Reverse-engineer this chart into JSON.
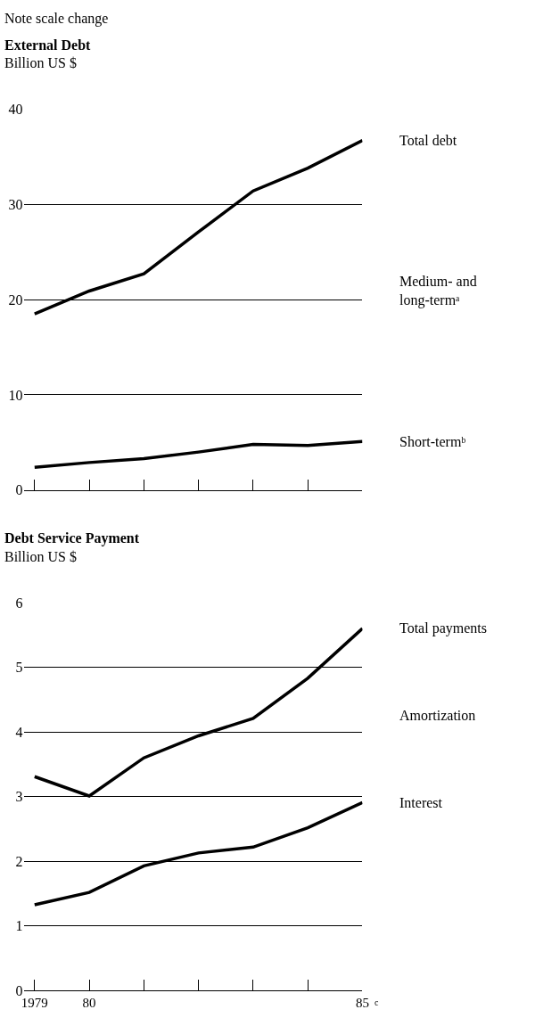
{
  "chart_data": [
    {
      "type": "line",
      "title": "External Debt",
      "subtitle": "Billion US $",
      "annotations": [
        "Medium- and long-termᵃ",
        "Note scale change"
      ],
      "x": [
        1979,
        1980,
        1981,
        1982,
        1983,
        1984,
        1985
      ],
      "series": [
        {
          "name": "Total debt",
          "color": "#000000",
          "values": [
            18.5,
            20.9,
            22.7,
            27.1,
            31.4,
            33.8,
            36.7
          ]
        },
        {
          "name": "Short-termᵇ",
          "color": "#000000",
          "values": [
            2.4,
            2.9,
            3.3,
            4.0,
            4.8,
            4.7,
            5.1
          ]
        }
      ],
      "xlim": [
        1978.8,
        1985
      ],
      "ylim": [
        0,
        40
      ],
      "yticks": [
        0,
        10,
        20,
        30,
        40
      ],
      "xticks": [
        {
          "value": 1979,
          "label": null
        },
        {
          "value": 1980,
          "label": null
        },
        {
          "value": 1981,
          "label": null
        },
        {
          "value": 1982,
          "label": null
        },
        {
          "value": 1983,
          "label": null
        },
        {
          "value": 1984,
          "label": null
        },
        {
          "value": 1985,
          "label": null
        }
      ],
      "tick_labels": "y",
      "grid": "y",
      "line_style": "solid"
    },
    {
      "type": "line",
      "title": "Debt Service Payment",
      "subtitle": "Billion US $",
      "annotations": [
        "Amortization",
        "c"
      ],
      "x": [
        1979,
        1980,
        1981,
        1982,
        1983,
        1984,
        1985
      ],
      "series": [
        {
          "name": "Total payments",
          "color": "#000000",
          "values": [
            3.31,
            3.01,
            3.6,
            3.94,
            4.21,
            4.83,
            5.6
          ]
        },
        {
          "name": "Interest",
          "color": "#000000",
          "values": [
            1.33,
            1.52,
            1.93,
            2.13,
            2.22,
            2.52,
            2.91
          ]
        }
      ],
      "xlim": [
        1978.8,
        1985
      ],
      "ylim": [
        0,
        6
      ],
      "yticks": [
        0,
        1,
        2,
        3,
        4,
        5,
        6
      ],
      "xticks": [
        {
          "value": 1979,
          "label": "1979"
        },
        {
          "value": 1980,
          "label": "80"
        },
        {
          "value": 1981,
          "label": null
        },
        {
          "value": 1982,
          "label": null
        },
        {
          "value": 1983,
          "label": null
        },
        {
          "value": 1984,
          "label": null
        },
        {
          "value": 1985,
          "label": "85"
        }
      ],
      "grid": "y",
      "line_style": "solid"
    }
  ]
}
